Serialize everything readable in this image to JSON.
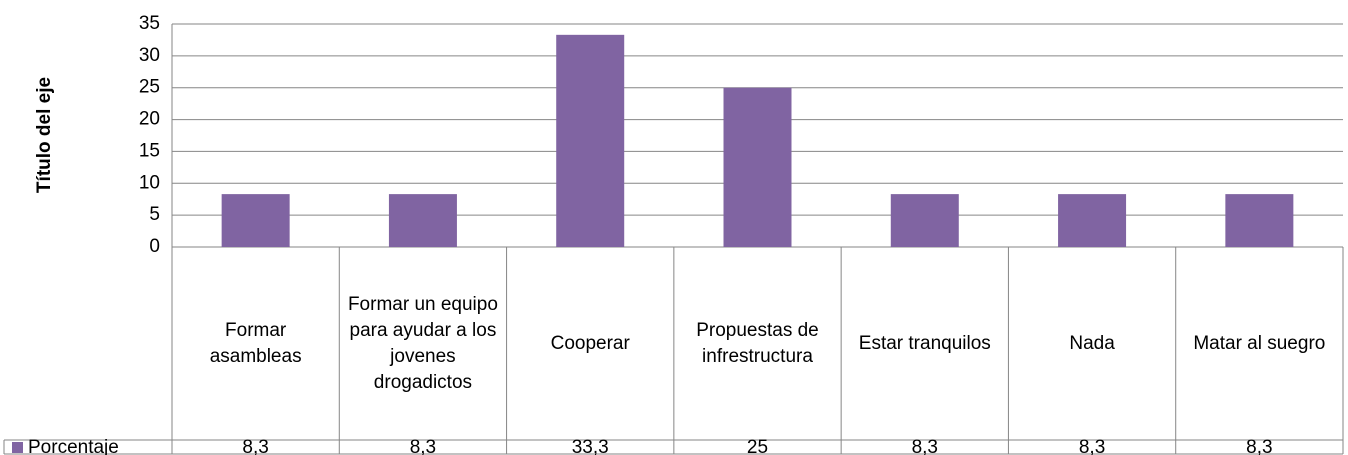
{
  "chart_data": {
    "type": "bar",
    "y_axis_label": "Título del eje",
    "categories": [
      "Formar asambleas",
      "Formar un equipo para ayudar a los jovenes drogadictos",
      "Cooperar",
      "Propuestas de infrestructura",
      "Estar tranquilos",
      "Nada",
      "Matar al suegro"
    ],
    "series": [
      {
        "name": "Porcentaje",
        "color": "#8064a2",
        "values": [
          8.3,
          8.3,
          33.3,
          25,
          8.3,
          8.3,
          8.3
        ],
        "value_labels": [
          "8,3",
          "8,3",
          "33,3",
          "25",
          "8,3",
          "8,3",
          "8,3"
        ]
      }
    ],
    "ylim": [
      0,
      35
    ],
    "yticks": [
      0,
      5,
      10,
      15,
      20,
      25,
      30,
      35
    ],
    "grid": true
  }
}
